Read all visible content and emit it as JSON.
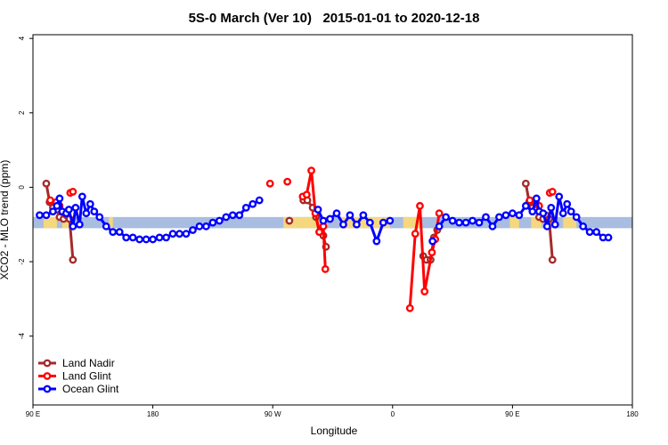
{
  "chart_data": {
    "type": "line",
    "title": "5S-0 March (Ver 10)   2015-01-01 to 2020-12-18",
    "xlabel": "Longitude",
    "ylabel": "XCO2 - MLO trend (ppm)",
    "xlim": [
      90,
      540
    ],
    "ylim": [
      -5.85,
      4.1
    ],
    "x_ticks": [
      {
        "value": 90,
        "label": "90 E"
      },
      {
        "value": 180,
        "label": "180"
      },
      {
        "value": 270,
        "label": "90 W"
      },
      {
        "value": 360,
        "label": "0"
      },
      {
        "value": 450,
        "label": "90 E"
      },
      {
        "value": 540,
        "label": "180"
      }
    ],
    "y_ticks": [
      {
        "value": -4,
        "label": "-4"
      },
      {
        "value": -2,
        "label": "-2"
      },
      {
        "value": 0,
        "label": "0"
      },
      {
        "value": 2,
        "label": "2"
      },
      {
        "value": 4,
        "label": "4"
      }
    ],
    "grid": false,
    "legend_position": "bottom-left",
    "land_ocean_strip": {
      "y_range": [
        -1.1,
        -0.8
      ],
      "ocean_color": "#a8bde0",
      "land_color": "#f5d77e",
      "land_spans": [
        [
          98,
          108
        ],
        [
          112,
          118
        ],
        [
          147,
          150
        ],
        [
          278,
          288
        ],
        [
          288,
          305
        ],
        [
          320,
          358
        ],
        [
          368,
          378
        ],
        [
          376,
          382
        ],
        [
          448,
          455
        ],
        [
          464,
          472
        ],
        [
          488,
          498
        ]
      ]
    },
    "series": [
      {
        "name": "Land Nadir",
        "color": "#a52a2a",
        "segments": [
          [
            [
              100,
              0.1
            ],
            [
              102.5,
              -0.4
            ],
            [
              105,
              -0.55
            ],
            [
              108,
              -0.6
            ],
            [
              110,
              -0.8
            ],
            [
              113,
              -0.85
            ],
            [
              115,
              -0.75
            ],
            [
              117.5,
              -0.85
            ],
            [
              120,
              -1.95
            ]
          ],
          [
            [
              282.5,
              -0.9
            ]
          ],
          [
            [
              293,
              -0.35
            ],
            [
              296,
              -0.35
            ],
            [
              300,
              -0.55
            ],
            [
              302.5,
              -0.8
            ],
            [
              305,
              -1.2
            ],
            [
              308,
              -1.3
            ],
            [
              310,
              -1.6
            ]
          ],
          [
            [
              383,
              -1.85
            ],
            [
              385.5,
              -1.95
            ],
            [
              388.5,
              -1.95
            ],
            [
              391,
              -1.35
            ],
            [
              393.5,
              -1.15
            ]
          ],
          [
            [
              460,
              0.1
            ],
            [
              462.5,
              -0.4
            ],
            [
              465,
              -0.55
            ],
            [
              468,
              -0.6
            ],
            [
              470,
              -0.8
            ],
            [
              473,
              -0.85
            ],
            [
              475,
              -0.75
            ],
            [
              477.5,
              -0.85
            ],
            [
              480,
              -1.95
            ]
          ]
        ]
      },
      {
        "name": "Land Glint",
        "color": "#ff0000",
        "segments": [
          [
            [
              103,
              -0.35
            ],
            [
              107.5,
              -0.4
            ],
            [
              110,
              -0.5
            ]
          ],
          [
            [
              118,
              -0.15
            ],
            [
              120,
              -0.12
            ]
          ],
          [
            [
              268,
              0.1
            ]
          ],
          [
            [
              281,
              0.15
            ]
          ],
          [
            [
              292.5,
              -0.25
            ],
            [
              295.5,
              -0.2
            ],
            [
              299,
              0.45
            ],
            [
              302,
              -0.7
            ],
            [
              305,
              -1.2
            ],
            [
              308,
              -1.05
            ],
            [
              309.5,
              -2.2
            ]
          ],
          [
            [
              373,
              -3.25
            ],
            [
              377,
              -1.25
            ],
            [
              380.5,
              -0.5
            ],
            [
              384,
              -2.8
            ],
            [
              389.5,
              -1.75
            ],
            [
              392,
              -1.4
            ],
            [
              395,
              -0.7
            ]
          ],
          [
            [
              463,
              -0.35
            ],
            [
              467.5,
              -0.4
            ],
            [
              470,
              -0.5
            ]
          ],
          [
            [
              478,
              -0.15
            ],
            [
              480,
              -0.12
            ]
          ]
        ]
      },
      {
        "name": "Ocean Glint",
        "color": "#0000ff",
        "segments": [
          [
            [
              95,
              -0.75
            ],
            [
              100,
              -0.75
            ],
            [
              105,
              -0.65
            ],
            [
              108,
              -0.5
            ],
            [
              110,
              -0.3
            ],
            [
              112,
              -0.65
            ],
            [
              115,
              -0.7
            ],
            [
              117,
              -0.6
            ],
            [
              120,
              -1.05
            ],
            [
              122,
              -0.55
            ],
            [
              125,
              -1.0
            ],
            [
              127,
              -0.25
            ],
            [
              130,
              -0.7
            ],
            [
              133,
              -0.45
            ],
            [
              136,
              -0.65
            ],
            [
              140,
              -0.8
            ],
            [
              145,
              -1.05
            ],
            [
              150,
              -1.2
            ],
            [
              155,
              -1.2
            ],
            [
              160,
              -1.35
            ],
            [
              165,
              -1.35
            ],
            [
              170,
              -1.4
            ],
            [
              175,
              -1.4
            ],
            [
              180,
              -1.4
            ],
            [
              185,
              -1.35
            ],
            [
              190,
              -1.35
            ],
            [
              195,
              -1.25
            ],
            [
              200,
              -1.25
            ],
            [
              205,
              -1.25
            ],
            [
              210,
              -1.15
            ],
            [
              215,
              -1.05
            ],
            [
              220,
              -1.05
            ],
            [
              225,
              -0.95
            ],
            [
              230,
              -0.9
            ],
            [
              235,
              -0.8
            ],
            [
              240,
              -0.75
            ],
            [
              245,
              -0.75
            ],
            [
              250,
              -0.55
            ],
            [
              255,
              -0.45
            ],
            [
              260,
              -0.35
            ]
          ],
          [
            [
              304,
              -0.6
            ],
            [
              308,
              -0.9
            ],
            [
              313,
              -0.85
            ],
            [
              318,
              -0.7
            ],
            [
              323,
              -1.0
            ],
            [
              328,
              -0.75
            ],
            [
              333,
              -1.0
            ],
            [
              338,
              -0.75
            ],
            [
              343,
              -0.95
            ],
            [
              348,
              -1.45
            ],
            [
              353,
              -0.95
            ],
            [
              358,
              -0.9
            ]
          ],
          [
            [
              390,
              -1.45
            ]
          ],
          [
            [
              395,
              -1.05
            ],
            [
              400,
              -0.8
            ],
            [
              405,
              -0.9
            ],
            [
              410,
              -0.95
            ],
            [
              415,
              -0.95
            ],
            [
              420,
              -0.9
            ],
            [
              425,
              -0.95
            ],
            [
              430,
              -0.8
            ],
            [
              435,
              -1.05
            ],
            [
              440,
              -0.8
            ],
            [
              445,
              -0.75
            ],
            [
              450,
              -0.7
            ],
            [
              455,
              -0.75
            ],
            [
              460,
              -0.5
            ],
            [
              465,
              -0.65
            ],
            [
              468,
              -0.3
            ],
            [
              470,
              -0.65
            ],
            [
              473,
              -0.7
            ],
            [
              476,
              -1.05
            ],
            [
              479,
              -0.55
            ],
            [
              482,
              -1.0
            ],
            [
              485,
              -0.25
            ],
            [
              488,
              -0.7
            ],
            [
              491,
              -0.45
            ],
            [
              494,
              -0.65
            ],
            [
              498,
              -0.8
            ],
            [
              503,
              -1.05
            ],
            [
              508,
              -1.2
            ],
            [
              513,
              -1.2
            ],
            [
              518,
              -1.35
            ],
            [
              522,
              -1.35
            ]
          ]
        ]
      }
    ]
  }
}
